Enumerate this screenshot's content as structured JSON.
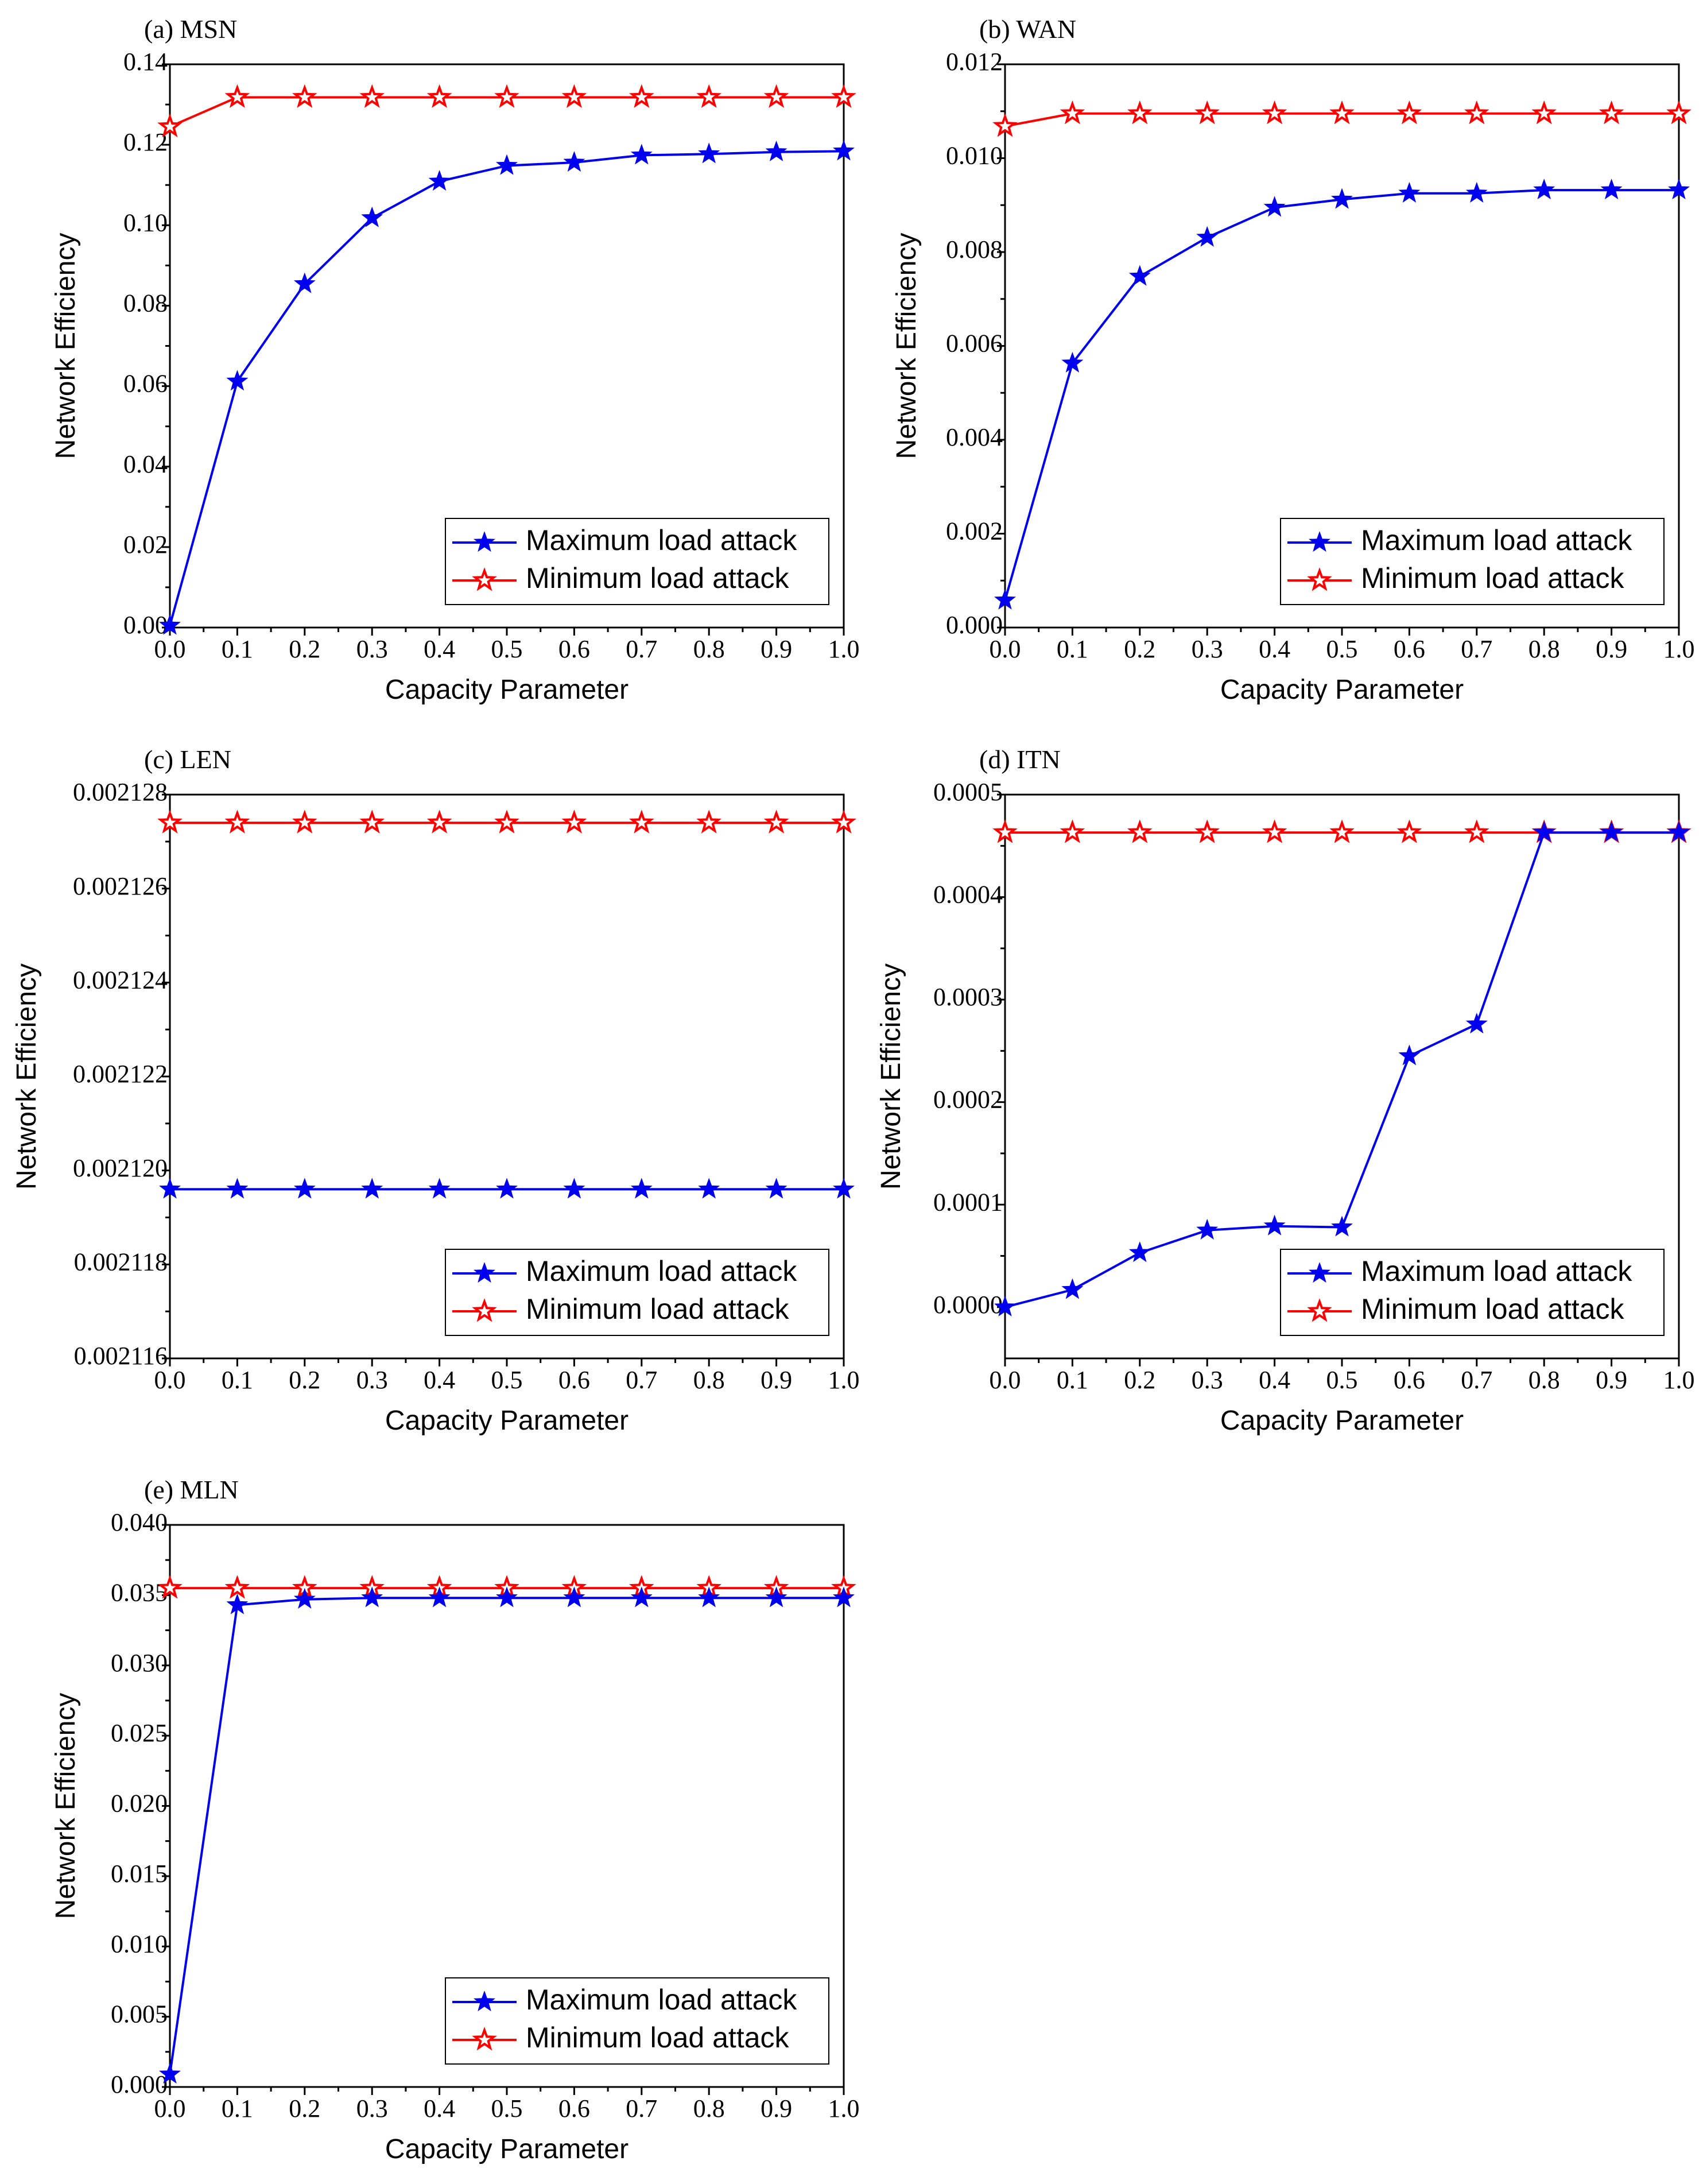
{
  "figure": {
    "colors": {
      "max_series": "#0000ee",
      "min_series": "#ff0000",
      "axis": "#000000"
    }
  },
  "chart_data": [
    {
      "type": "line",
      "title": "(a) MSN",
      "xlabel": "Capacity Parameter",
      "ylabel": "Network Efficiency",
      "x": [
        0.0,
        0.1,
        0.2,
        0.3,
        0.4,
        0.5,
        0.6,
        0.7,
        0.8,
        0.9,
        1.0
      ],
      "xticks": [
        "0.0",
        "0.1",
        "0.2",
        "0.3",
        "0.4",
        "0.5",
        "0.6",
        "0.7",
        "0.8",
        "0.9",
        "1.0"
      ],
      "xlim": [
        0.0,
        1.0
      ],
      "ylim": [
        0.0,
        0.14
      ],
      "yticks": [
        0.0,
        0.02,
        0.04,
        0.06,
        0.08,
        0.1,
        0.12,
        0.14
      ],
      "ytick_labels": [
        "0.00",
        "0.02",
        "0.04",
        "0.06",
        "0.08",
        "0.10",
        "0.12",
        "0.14"
      ],
      "legend_position": "bottom-right",
      "series": [
        {
          "name": "Maximum load attack",
          "marker": "filled-star",
          "values": [
            0.0005,
            0.0612,
            0.0854,
            0.1018,
            0.1109,
            0.1148,
            0.1156,
            0.1174,
            0.1177,
            0.1182,
            0.1184
          ]
        },
        {
          "name": "Minimum load attack",
          "marker": "hollow-star",
          "values": [
            0.1245,
            0.1318,
            0.1318,
            0.1318,
            0.1318,
            0.1318,
            0.1318,
            0.1318,
            0.1318,
            0.1318,
            0.1318
          ]
        }
      ]
    },
    {
      "type": "line",
      "title": "(b) WAN",
      "xlabel": "Capacity Parameter",
      "ylabel": "Network Efficiency",
      "x": [
        0.0,
        0.1,
        0.2,
        0.3,
        0.4,
        0.5,
        0.6,
        0.7,
        0.8,
        0.9,
        1.0
      ],
      "xticks": [
        "0.0",
        "0.1",
        "0.2",
        "0.3",
        "0.4",
        "0.5",
        "0.6",
        "0.7",
        "0.8",
        "0.9",
        "1.0"
      ],
      "xlim": [
        0.0,
        1.0
      ],
      "ylim": [
        0.0,
        0.012
      ],
      "yticks": [
        0.0,
        0.002,
        0.004,
        0.006,
        0.008,
        0.01,
        0.012
      ],
      "ytick_labels": [
        "0.000",
        "0.002",
        "0.004",
        "0.006",
        "0.008",
        "0.010",
        "0.012"
      ],
      "legend_position": "bottom-right",
      "series": [
        {
          "name": "Maximum load attack",
          "marker": "filled-star",
          "values": [
            0.00058,
            0.00563,
            0.00748,
            0.00831,
            0.00895,
            0.00912,
            0.00925,
            0.00925,
            0.00932,
            0.00932,
            0.00932
          ]
        },
        {
          "name": "Minimum load attack",
          "marker": "hollow-star",
          "values": [
            0.01068,
            0.01095,
            0.01095,
            0.01095,
            0.01095,
            0.01095,
            0.01095,
            0.01095,
            0.01095,
            0.01095,
            0.01095
          ]
        }
      ]
    },
    {
      "type": "line",
      "title": "(c) LEN",
      "xlabel": "Capacity Parameter",
      "ylabel": "Network Efficiency",
      "x": [
        0.0,
        0.1,
        0.2,
        0.3,
        0.4,
        0.5,
        0.6,
        0.7,
        0.8,
        0.9,
        1.0
      ],
      "xticks": [
        "0.0",
        "0.1",
        "0.2",
        "0.3",
        "0.4",
        "0.5",
        "0.6",
        "0.7",
        "0.8",
        "0.9",
        "1.0"
      ],
      "xlim": [
        0.0,
        1.0
      ],
      "ylim": [
        0.002116,
        0.002128
      ],
      "yticks": [
        0.002116,
        0.002118,
        0.00212,
        0.002122,
        0.002124,
        0.002126,
        0.002128
      ],
      "ytick_labels": [
        "0.002116",
        "0.002118",
        "0.002120",
        "0.002122",
        "0.002124",
        "0.002126",
        "0.002128"
      ],
      "legend_position": "bottom-right",
      "series": [
        {
          "name": "Maximum load attack",
          "marker": "filled-star",
          "values": [
            0.0021196,
            0.0021196,
            0.0021196,
            0.0021196,
            0.0021196,
            0.0021196,
            0.0021196,
            0.0021196,
            0.0021196,
            0.0021196,
            0.0021196
          ]
        },
        {
          "name": "Minimum load attack",
          "marker": "hollow-star",
          "values": [
            0.0021274,
            0.0021274,
            0.0021274,
            0.0021274,
            0.0021274,
            0.0021274,
            0.0021274,
            0.0021274,
            0.0021274,
            0.0021274,
            0.0021274
          ]
        }
      ]
    },
    {
      "type": "line",
      "title": "(d) ITN",
      "xlabel": "Capacity Parameter",
      "ylabel": "Network Efficiency",
      "x": [
        0.0,
        0.1,
        0.2,
        0.3,
        0.4,
        0.5,
        0.6,
        0.7,
        0.8,
        0.9,
        1.0
      ],
      "xticks": [
        "0.0",
        "0.1",
        "0.2",
        "0.3",
        "0.4",
        "0.5",
        "0.6",
        "0.7",
        "0.8",
        "0.9",
        "1.0"
      ],
      "xlim": [
        0.0,
        1.0
      ],
      "ylim": [
        -5e-05,
        0.0005
      ],
      "yticks": [
        0.0,
        0.0001,
        0.0002,
        0.0003,
        0.0004,
        0.0005
      ],
      "ytick_labels": [
        "0.0000",
        "0.0001",
        "0.0002",
        "0.0003",
        "0.0004",
        "0.0005"
      ],
      "legend_position": "bottom-right",
      "series": [
        {
          "name": "Maximum load attack",
          "marker": "filled-star",
          "values": [
            0.0,
            1.7e-05,
            5.3e-05,
            7.5e-05,
            7.9e-05,
            7.8e-05,
            0.000245,
            0.000276,
            0.000463,
            0.000463,
            0.000463
          ]
        },
        {
          "name": "Minimum load attack",
          "marker": "hollow-star",
          "values": [
            0.000463,
            0.000463,
            0.000463,
            0.000463,
            0.000463,
            0.000463,
            0.000463,
            0.000463,
            0.000463,
            0.000463,
            0.000463
          ]
        }
      ]
    },
    {
      "type": "line",
      "title": "(e) MLN",
      "xlabel": "Capacity Parameter",
      "ylabel": "Network Efficiency",
      "x": [
        0.0,
        0.1,
        0.2,
        0.3,
        0.4,
        0.5,
        0.6,
        0.7,
        0.8,
        0.9,
        1.0
      ],
      "xticks": [
        "0.0",
        "0.1",
        "0.2",
        "0.3",
        "0.4",
        "0.5",
        "0.6",
        "0.7",
        "0.8",
        "0.9",
        "1.0"
      ],
      "xlim": [
        0.0,
        1.0
      ],
      "ylim": [
        0.0,
        0.04
      ],
      "yticks": [
        0.0,
        0.005,
        0.01,
        0.015,
        0.02,
        0.025,
        0.03,
        0.035,
        0.04
      ],
      "ytick_labels": [
        "0.000",
        "0.005",
        "0.010",
        "0.015",
        "0.020",
        "0.025",
        "0.030",
        "0.035",
        "0.040"
      ],
      "legend_position": "bottom-right",
      "series": [
        {
          "name": "Maximum load attack",
          "marker": "filled-star",
          "values": [
            0.0009,
            0.0343,
            0.0347,
            0.0348,
            0.0348,
            0.0348,
            0.0348,
            0.0348,
            0.0348,
            0.0348,
            0.0348
          ]
        },
        {
          "name": "Minimum load attack",
          "marker": "hollow-star",
          "values": [
            0.0355,
            0.0355,
            0.0355,
            0.0355,
            0.0355,
            0.0355,
            0.0355,
            0.0355,
            0.0355,
            0.0355,
            0.0355
          ]
        }
      ]
    }
  ]
}
